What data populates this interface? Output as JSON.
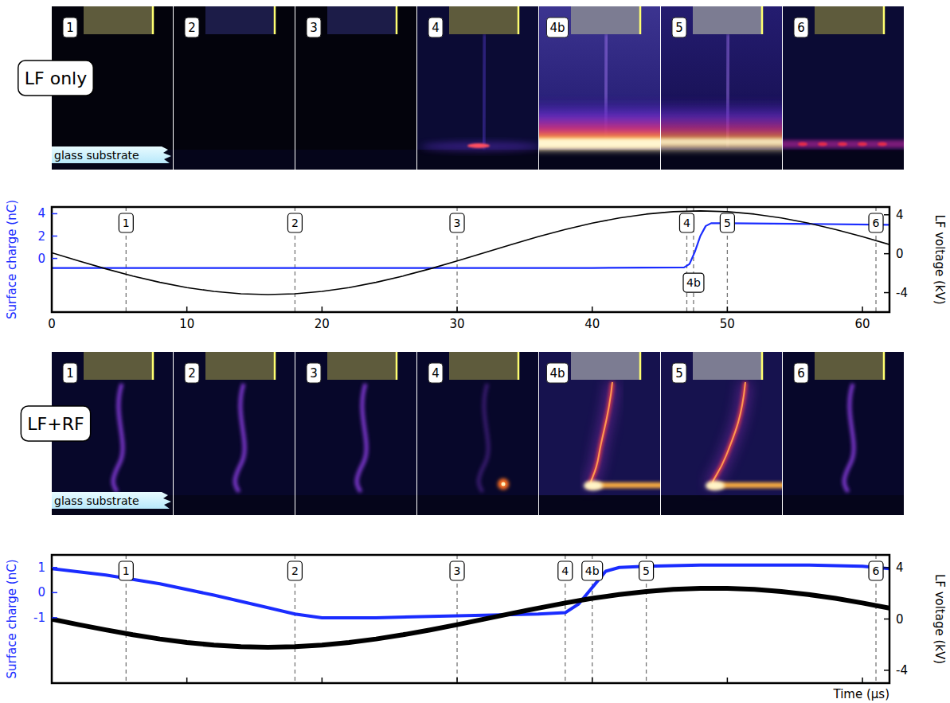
{
  "image_rows": [
    {
      "label": "LF only",
      "frames": [
        "1",
        "2",
        "3",
        "4",
        "4b",
        "5",
        "6"
      ],
      "substrate_label": "glass substrate"
    },
    {
      "label": "LF+RF",
      "frames": [
        "1",
        "2",
        "3",
        "4",
        "4b",
        "5",
        "6"
      ],
      "substrate_label": "glass substrate"
    }
  ],
  "chart_data": [
    {
      "type": "line",
      "xlim": [
        0,
        62
      ],
      "xticks": [
        0,
        10,
        20,
        30,
        40,
        50,
        60
      ],
      "ylim": [
        -4.8,
        4.6
      ],
      "yticks": [
        0,
        2,
        4
      ],
      "y2lim": [
        -6,
        4.8
      ],
      "y2ticks": [
        -4,
        0,
        4
      ],
      "ylabel": "Surface charge (nC)",
      "y2label": "LF voltage (kV)",
      "series": [
        {
          "color": "#1a2cff",
          "x": [
            0,
            10,
            20,
            30,
            40,
            46.8,
            47.2,
            47.6,
            48.0,
            48.4,
            48.8,
            50,
            55,
            62
          ],
          "values": [
            -0.85,
            -0.85,
            -0.86,
            -0.85,
            -0.85,
            -0.8,
            -0.5,
            0.6,
            2.0,
            2.9,
            3.15,
            3.15,
            3.1,
            3.0
          ]
        },
        {
          "color": "#000000",
          "axis": "y2",
          "x": [
            0,
            2,
            4,
            6,
            8,
            10,
            12,
            14,
            16,
            18,
            20,
            22,
            24,
            26,
            28,
            30,
            32,
            34,
            36,
            38,
            40,
            42,
            44,
            46,
            48,
            50,
            52,
            54,
            56,
            58,
            60,
            62
          ],
          "values": [
            0.1,
            -0.74,
            -1.55,
            -2.29,
            -2.94,
            -3.48,
            -3.87,
            -4.12,
            -4.2,
            -4.12,
            -3.87,
            -3.48,
            -2.94,
            -2.29,
            -1.55,
            -0.74,
            0.1,
            0.94,
            1.75,
            2.49,
            3.14,
            3.68,
            4.07,
            4.32,
            4.4,
            4.32,
            4.07,
            3.68,
            3.14,
            2.49,
            1.75,
            0.94
          ]
        }
      ],
      "annotations": [
        {
          "x": 5.5,
          "label": "1"
        },
        {
          "x": 18,
          "label": "2"
        },
        {
          "x": 30,
          "label": "3"
        },
        {
          "x": 47,
          "label": "4"
        },
        {
          "x": 47.5,
          "label": "4b"
        },
        {
          "x": 50,
          "label": "5"
        },
        {
          "x": 61,
          "label": "6"
        }
      ]
    },
    {
      "type": "line",
      "xlim": [
        0,
        62
      ],
      "xticks": [
        0,
        10,
        20,
        30,
        40,
        50,
        60
      ],
      "tick_labels": "y",
      "ylim": [
        -3.6,
        1.5
      ],
      "yticks": [
        -1,
        0,
        1
      ],
      "y2lim": [
        -5,
        5
      ],
      "y2ticks": [
        -4,
        0,
        4
      ],
      "ylabel": "Surface charge (nC)",
      "y2label": "LF voltage (kV)",
      "xlabel": "Time (μs)",
      "series": [
        {
          "color": "#1a2cff",
          "x": [
            0,
            4,
            8,
            12,
            16,
            18,
            20,
            24,
            28,
            32,
            36,
            38,
            39,
            40,
            41,
            42,
            44,
            48,
            52,
            56,
            60,
            62
          ],
          "values": [
            0.95,
            0.7,
            0.35,
            -0.1,
            -0.6,
            -0.85,
            -1.0,
            -1.0,
            -0.95,
            -0.9,
            -0.85,
            -0.8,
            -0.45,
            0.2,
            0.85,
            1.0,
            1.05,
            1.1,
            1.1,
            1.1,
            1.05,
            0.95
          ]
        },
        {
          "color": "#000000",
          "axis": "y2",
          "x": [
            0,
            2,
            4,
            6,
            8,
            10,
            12,
            14,
            16,
            18,
            20,
            22,
            24,
            26,
            28,
            30,
            32,
            34,
            36,
            38,
            40,
            42,
            44,
            46,
            48,
            50,
            52,
            54,
            56,
            58,
            60,
            62
          ],
          "values": [
            -0.01,
            -0.44,
            -0.85,
            -1.23,
            -1.56,
            -1.83,
            -2.04,
            -2.16,
            -2.2,
            -2.16,
            -2.04,
            -1.83,
            -1.56,
            -1.23,
            -0.85,
            -0.44,
            -0.01,
            0.43,
            0.85,
            1.25,
            1.61,
            1.91,
            2.14,
            2.31,
            2.39,
            2.39,
            2.31,
            2.14,
            1.91,
            1.61,
            1.25,
            0.85
          ]
        }
      ],
      "annotations": [
        {
          "x": 5.5,
          "label": "1"
        },
        {
          "x": 18,
          "label": "2"
        },
        {
          "x": 30,
          "label": "3"
        },
        {
          "x": 38,
          "label": "4"
        },
        {
          "x": 40,
          "label": "4b"
        },
        {
          "x": 44,
          "label": "5"
        },
        {
          "x": 61,
          "label": "6"
        }
      ]
    }
  ]
}
